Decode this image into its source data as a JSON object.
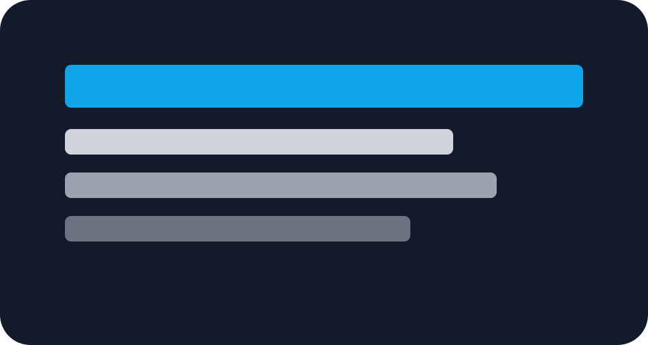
{
  "theme": {
    "background": "#131a29",
    "accent": "#0ea5e9"
  },
  "skeleton": {
    "title_bar": {
      "color": "#0ea5e9"
    },
    "lines": [
      {
        "color": "#d1d5db"
      },
      {
        "color": "#9ca3af"
      },
      {
        "color": "#6b7280"
      }
    ]
  }
}
